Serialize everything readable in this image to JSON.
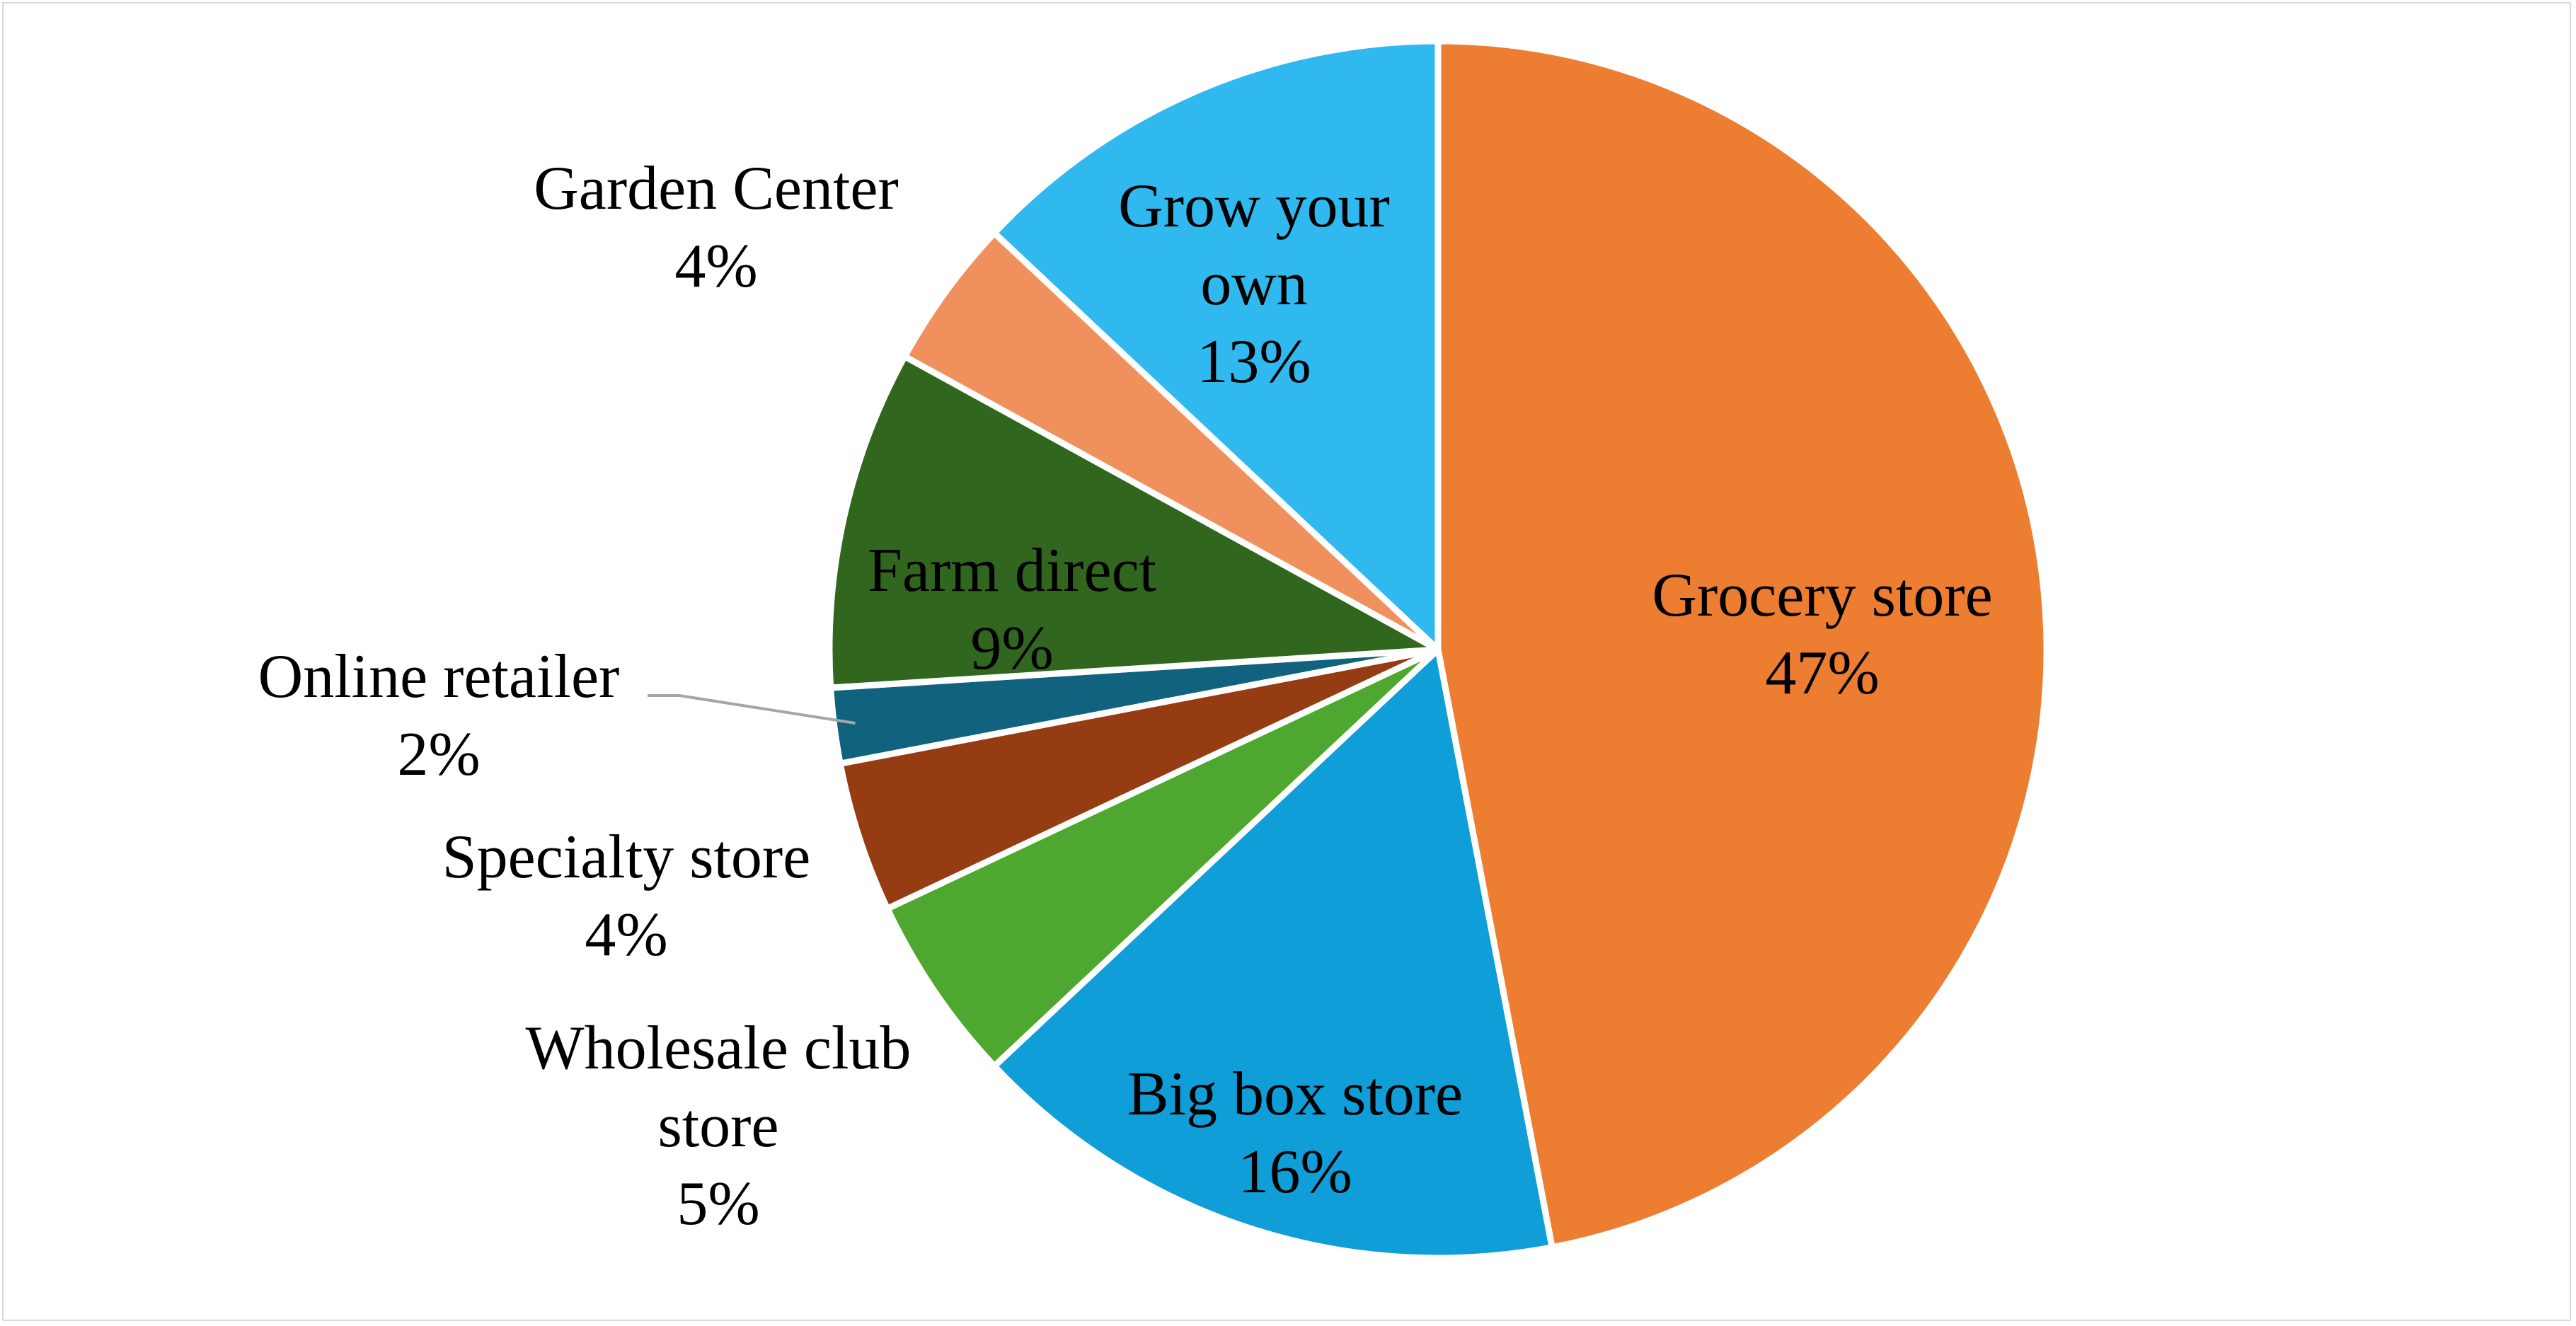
{
  "chart_data": {
    "type": "pie",
    "start_angle_deg": 0,
    "direction": "clockwise",
    "slices": [
      {
        "name": "Grocery store",
        "label_lines": [
          "Grocery store"
        ],
        "percent_label": "47%",
        "value": 47,
        "color": "#ED7D31"
      },
      {
        "name": "Big box store",
        "label_lines": [
          "Big box store"
        ],
        "percent_label": "16%",
        "value": 16,
        "color": "#0F9ED8"
      },
      {
        "name": "Wholesale club store",
        "label_lines": [
          "Wholesale club",
          "store"
        ],
        "percent_label": "5%",
        "value": 5,
        "color": "#4EA72E"
      },
      {
        "name": "Specialty store",
        "label_lines": [
          "Specialty store"
        ],
        "percent_label": "4%",
        "value": 4,
        "color": "#963C13"
      },
      {
        "name": "Online retailer",
        "label_lines": [
          "Online retailer"
        ],
        "percent_label": "2%",
        "value": 2,
        "color": "#10627F"
      },
      {
        "name": "Farm direct",
        "label_lines": [
          "Farm direct"
        ],
        "percent_label": "9%",
        "value": 9,
        "color": "#31661F"
      },
      {
        "name": "Garden Center",
        "label_lines": [
          "Garden Center"
        ],
        "percent_label": "4%",
        "value": 4,
        "color": "#F0905C"
      },
      {
        "name": "Grow your own",
        "label_lines": [
          "Grow your",
          "own"
        ],
        "percent_label": "13%",
        "value": 13,
        "color": "#2FB9EF"
      }
    ]
  }
}
